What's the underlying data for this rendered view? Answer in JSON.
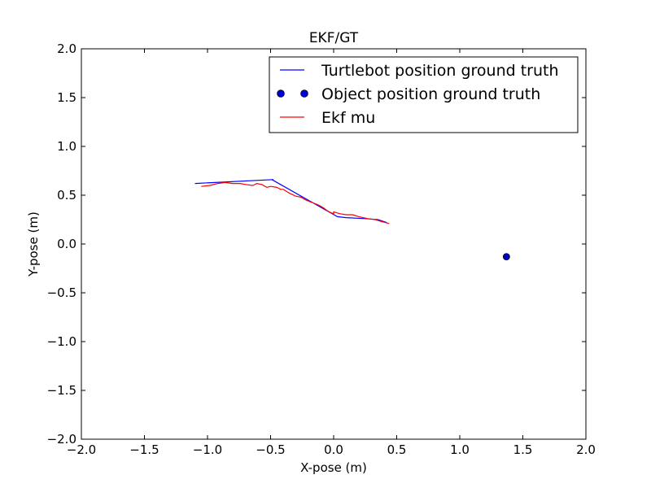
{
  "chart_data": {
    "type": "line",
    "title": "EKF/GT",
    "xlabel": "X-pose (m)",
    "ylabel": "Y-pose (m)",
    "xlim": [
      -2.0,
      2.0
    ],
    "ylim": [
      -2.0,
      2.0
    ],
    "x_ticks": [
      -2.0,
      -1.5,
      -1.0,
      -0.5,
      0.0,
      0.5,
      1.0,
      1.5,
      2.0
    ],
    "y_ticks": [
      -2.0,
      -1.5,
      -1.0,
      -0.5,
      0.0,
      0.5,
      1.0,
      1.5,
      2.0
    ],
    "x_tick_labels": [
      "−2.0",
      "−1.5",
      "−1.0",
      "−0.5",
      "0.0",
      "0.5",
      "1.0",
      "1.5",
      "2.0"
    ],
    "y_tick_labels": [
      "−2.0",
      "−1.5",
      "−1.0",
      "−0.5",
      "0.0",
      "0.5",
      "1.0",
      "1.5",
      "2.0"
    ],
    "grid": false,
    "legend_position": "top-right",
    "series": [
      {
        "name": "Turtlebot position ground truth",
        "style": "line",
        "color": "#0000ff",
        "points": [
          [
            -1.1,
            0.62
          ],
          [
            -0.48,
            0.66
          ],
          [
            -0.49,
            0.66
          ],
          [
            0.03,
            0.28
          ],
          [
            0.1,
            0.27
          ],
          [
            0.25,
            0.26
          ],
          [
            0.35,
            0.25
          ],
          [
            0.42,
            0.22
          ]
        ]
      },
      {
        "name": "Object position ground truth",
        "style": "marker",
        "color": "#0000cc",
        "points": [
          [
            1.37,
            -0.13
          ]
        ]
      },
      {
        "name": "Ekf mu",
        "style": "line",
        "color": "#ff0000",
        "points": [
          [
            -1.05,
            0.59
          ],
          [
            -0.98,
            0.6
          ],
          [
            -0.92,
            0.62
          ],
          [
            -0.86,
            0.63
          ],
          [
            -0.8,
            0.62
          ],
          [
            -0.74,
            0.62
          ],
          [
            -0.7,
            0.61
          ],
          [
            -0.64,
            0.6
          ],
          [
            -0.61,
            0.62
          ],
          [
            -0.57,
            0.61
          ],
          [
            -0.53,
            0.58
          ],
          [
            -0.5,
            0.59
          ],
          [
            -0.45,
            0.58
          ],
          [
            -0.42,
            0.56
          ],
          [
            -0.4,
            0.56
          ],
          [
            -0.35,
            0.52
          ],
          [
            -0.3,
            0.49
          ],
          [
            -0.26,
            0.48
          ],
          [
            -0.22,
            0.45
          ],
          [
            -0.18,
            0.43
          ],
          [
            -0.12,
            0.4
          ],
          [
            -0.08,
            0.37
          ],
          [
            -0.05,
            0.34
          ],
          [
            -0.02,
            0.32
          ],
          [
            0.0,
            0.31
          ],
          [
            0.0,
            0.33
          ],
          [
            0.05,
            0.31
          ],
          [
            0.1,
            0.3
          ],
          [
            0.15,
            0.3
          ],
          [
            0.2,
            0.28
          ],
          [
            0.27,
            0.26
          ],
          [
            0.33,
            0.25
          ],
          [
            0.38,
            0.23
          ],
          [
            0.44,
            0.21
          ]
        ]
      }
    ]
  }
}
